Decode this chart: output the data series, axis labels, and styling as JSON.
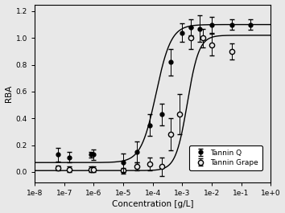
{
  "title": "",
  "xlabel": "Concentration [g/L]",
  "ylabel": "RBA",
  "ylim": [
    -0.08,
    1.25
  ],
  "yticks": [
    0.0,
    0.2,
    0.4,
    0.6,
    0.8,
    1.0,
    1.2
  ],
  "tannin_Q_x": [
    6e-08,
    1.5e-07,
    8e-07,
    1e-06,
    1e-05,
    3e-05,
    8e-05,
    0.0002,
    0.0004,
    0.001,
    0.002,
    0.004,
    0.01,
    0.05,
    0.2
  ],
  "tannin_Q_y": [
    0.13,
    0.11,
    0.13,
    0.13,
    0.07,
    0.15,
    0.35,
    0.43,
    0.82,
    1.04,
    1.08,
    1.07,
    1.1,
    1.1,
    1.1
  ],
  "tannin_Q_yerr": [
    0.05,
    0.04,
    0.02,
    0.04,
    0.07,
    0.08,
    0.08,
    0.08,
    0.1,
    0.07,
    0.06,
    0.1,
    0.06,
    0.04,
    0.04
  ],
  "tannin_Grape_x": [
    6e-08,
    1.5e-07,
    8e-07,
    1e-06,
    1e-05,
    3e-05,
    8e-05,
    0.0002,
    0.0004,
    0.0008,
    0.002,
    0.005,
    0.01,
    0.05
  ],
  "tannin_Grape_y": [
    0.03,
    0.02,
    0.02,
    0.02,
    0.01,
    0.04,
    0.06,
    0.04,
    0.28,
    0.43,
    1.0,
    1.0,
    0.95,
    0.9
  ],
  "tannin_Grape_yerr": [
    0.02,
    0.02,
    0.02,
    0.02,
    0.02,
    0.03,
    0.05,
    0.07,
    0.12,
    0.15,
    0.08,
    0.07,
    0.08,
    0.06
  ],
  "curve_Q_EC50": 0.00013,
  "curve_Q_Hill": 1.7,
  "curve_Q_max": 1.1,
  "curve_Q_min": 0.07,
  "curve_Grape_EC50": 0.0015,
  "curve_Grape_Hill": 2.2,
  "curve_Grape_max": 1.02,
  "curve_Grape_min": 0.01,
  "figsize": [
    3.54,
    2.65
  ],
  "dpi": 100
}
